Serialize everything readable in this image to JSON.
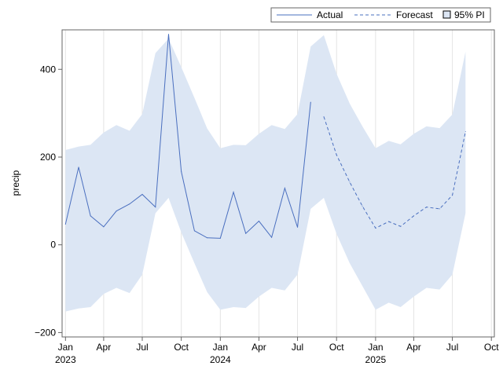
{
  "chart_data": {
    "type": "line",
    "title": "",
    "xlabel": "",
    "ylabel": "precip",
    "ylim": [
      -210,
      490
    ],
    "yticks": [
      -200,
      0,
      200,
      400
    ],
    "x_range": [
      "2022-12-24",
      "2025-10-08"
    ],
    "xticks": [
      {
        "date": "2023-01-01",
        "label": "Jan",
        "year": "2023"
      },
      {
        "date": "2023-04-01",
        "label": "Apr",
        "year": ""
      },
      {
        "date": "2023-07-01",
        "label": "Jul",
        "year": ""
      },
      {
        "date": "2023-10-01",
        "label": "Oct",
        "year": ""
      },
      {
        "date": "2024-01-01",
        "label": "Jan",
        "year": "2024"
      },
      {
        "date": "2024-04-01",
        "label": "Apr",
        "year": ""
      },
      {
        "date": "2024-07-01",
        "label": "Jul",
        "year": ""
      },
      {
        "date": "2024-10-01",
        "label": "Oct",
        "year": ""
      },
      {
        "date": "2025-01-01",
        "label": "Jan",
        "year": "2025"
      },
      {
        "date": "2025-04-01",
        "label": "Apr",
        "year": ""
      },
      {
        "date": "2025-07-01",
        "label": "Jul",
        "year": ""
      },
      {
        "date": "2025-10-01",
        "label": "Oct",
        "year": ""
      }
    ],
    "grid": "vertical",
    "legend_position": "top-right",
    "legend": [
      "Actual",
      "Forecast",
      "95% PI"
    ],
    "colors": {
      "actual": "#4a6fbf",
      "forecast": "#4a6fbf",
      "band": "#dce6f4",
      "grid": "#e4e4e4",
      "axis": "#666666"
    },
    "series": [
      {
        "name": "Actual",
        "style": "solid",
        "x": [
          "2023-01-01",
          "2023-02-01",
          "2023-03-01",
          "2023-04-01",
          "2023-05-01",
          "2023-06-01",
          "2023-07-01",
          "2023-08-01",
          "2023-09-01",
          "2023-10-01",
          "2023-11-01",
          "2023-12-01",
          "2024-01-01",
          "2024-02-01",
          "2024-03-01",
          "2024-04-01",
          "2024-05-01",
          "2024-06-01",
          "2024-07-01",
          "2024-08-01"
        ],
        "values": [
          47,
          177,
          66,
          41,
          77,
          93,
          115,
          86,
          480,
          167,
          32,
          16,
          15,
          120,
          26,
          54,
          17,
          129,
          40,
          325
        ]
      },
      {
        "name": "Forecast",
        "style": "dashed",
        "x": [
          "2024-09-01",
          "2024-10-01",
          "2024-11-01",
          "2024-12-01",
          "2025-01-01",
          "2025-02-01",
          "2025-03-01",
          "2025-04-01",
          "2025-05-01",
          "2025-06-01",
          "2025-07-01",
          "2025-08-01"
        ],
        "values": [
          292,
          205,
          143,
          88,
          38,
          53,
          42,
          66,
          86,
          82,
          113,
          258
        ]
      }
    ],
    "band": {
      "name": "95% PI",
      "x": [
        "2023-01-01",
        "2023-02-01",
        "2023-03-01",
        "2023-04-01",
        "2023-05-01",
        "2023-06-01",
        "2023-07-01",
        "2023-08-01",
        "2023-09-01",
        "2023-10-01",
        "2023-11-01",
        "2023-12-01",
        "2024-01-01",
        "2024-02-01",
        "2024-03-01",
        "2024-04-01",
        "2024-05-01",
        "2024-06-01",
        "2024-07-01",
        "2024-08-01",
        "2024-09-01",
        "2024-10-01",
        "2024-11-01",
        "2024-12-01",
        "2025-01-01",
        "2025-02-01",
        "2025-03-01",
        "2025-04-01",
        "2025-05-01",
        "2025-06-01",
        "2025-07-01",
        "2025-08-01"
      ],
      "upper": [
        216,
        224,
        228,
        256,
        273,
        260,
        298,
        437,
        470,
        405,
        335,
        265,
        220,
        228,
        227,
        253,
        273,
        264,
        298,
        452,
        478,
        390,
        322,
        270,
        220,
        237,
        229,
        253,
        270,
        266,
        297,
        440
      ],
      "lower": [
        -152,
        -145,
        -142,
        -112,
        -98,
        -110,
        -68,
        72,
        107,
        28,
        -42,
        -108,
        -148,
        -142,
        -144,
        -118,
        -98,
        -104,
        -68,
        82,
        107,
        25,
        -42,
        -94,
        -148,
        -132,
        -142,
        -118,
        -98,
        -102,
        -68,
        72
      ]
    }
  }
}
